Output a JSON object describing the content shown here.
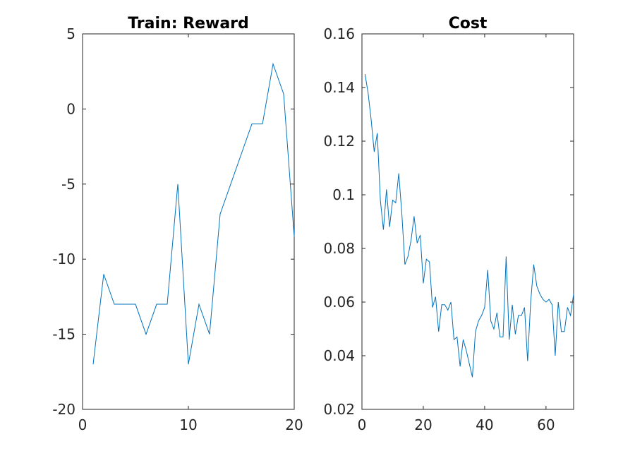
{
  "chart_data": [
    {
      "type": "line",
      "title": "Train: Reward",
      "xlabel": "",
      "ylabel": "",
      "xlim": [
        0,
        20
      ],
      "ylim": [
        -20,
        5
      ],
      "xticks": [
        0,
        10,
        20
      ],
      "yticks": [
        -20,
        -15,
        -10,
        -5,
        0,
        5
      ],
      "xtick_labels": [
        "0",
        "10",
        "20"
      ],
      "ytick_labels": [
        "-20",
        "-15",
        "-10",
        "-5",
        "0",
        "5"
      ],
      "grid": false,
      "line_color": "#0072BD",
      "series": [
        {
          "x": [
            1,
            2,
            3,
            4,
            5,
            6,
            7,
            8,
            9,
            10,
            11,
            12,
            13,
            14,
            15,
            16,
            17,
            18,
            19,
            20
          ],
          "values": [
            -17,
            -11,
            -13,
            -13,
            -13,
            -15,
            -13,
            -13,
            -5,
            -17,
            -13,
            -15,
            -7,
            -5,
            -3,
            -1,
            -1,
            3,
            1,
            -8.5
          ]
        }
      ]
    },
    {
      "type": "line",
      "title": "Cost",
      "xlabel": "",
      "ylabel": "",
      "xlim": [
        0,
        69
      ],
      "ylim": [
        0.02,
        0.16
      ],
      "xticks": [
        0,
        20,
        40,
        60
      ],
      "yticks": [
        0.02,
        0.04,
        0.06,
        0.08,
        0.1,
        0.12,
        0.14,
        0.16
      ],
      "xtick_labels": [
        "0",
        "20",
        "40",
        "60"
      ],
      "ytick_labels": [
        "0.02",
        "0.04",
        "0.06",
        "0.08",
        "0.1",
        "0.12",
        "0.14",
        "0.16"
      ],
      "grid": false,
      "line_color": "#0072BD",
      "series": [
        {
          "x": [
            1,
            2,
            3,
            4,
            5,
            6,
            7,
            8,
            9,
            10,
            11,
            12,
            13,
            14,
            15,
            16,
            17,
            18,
            19,
            20,
            21,
            22,
            23,
            24,
            25,
            26,
            27,
            28,
            29,
            30,
            31,
            32,
            33,
            34,
            35,
            36,
            37,
            38,
            39,
            40,
            41,
            42,
            43,
            44,
            45,
            46,
            47,
            48,
            49,
            50,
            51,
            52,
            53,
            54,
            55,
            56,
            57,
            58,
            59,
            60,
            61,
            62,
            63,
            64,
            65,
            66,
            67,
            68,
            69
          ],
          "values": [
            0.145,
            0.138,
            0.128,
            0.116,
            0.123,
            0.098,
            0.087,
            0.102,
            0.088,
            0.098,
            0.097,
            0.108,
            0.093,
            0.074,
            0.077,
            0.083,
            0.092,
            0.082,
            0.085,
            0.067,
            0.076,
            0.075,
            0.058,
            0.062,
            0.049,
            0.059,
            0.059,
            0.057,
            0.06,
            0.046,
            0.047,
            0.036,
            0.046,
            0.042,
            0.037,
            0.032,
            0.049,
            0.053,
            0.055,
            0.058,
            0.072,
            0.053,
            0.05,
            0.056,
            0.047,
            0.047,
            0.077,
            0.046,
            0.059,
            0.048,
            0.055,
            0.055,
            0.058,
            0.038,
            0.06,
            0.074,
            0.066,
            0.063,
            0.061,
            0.06,
            0.061,
            0.059,
            0.04,
            0.06,
            0.049,
            0.049,
            0.058,
            0.055,
            0.063
          ]
        }
      ]
    }
  ]
}
